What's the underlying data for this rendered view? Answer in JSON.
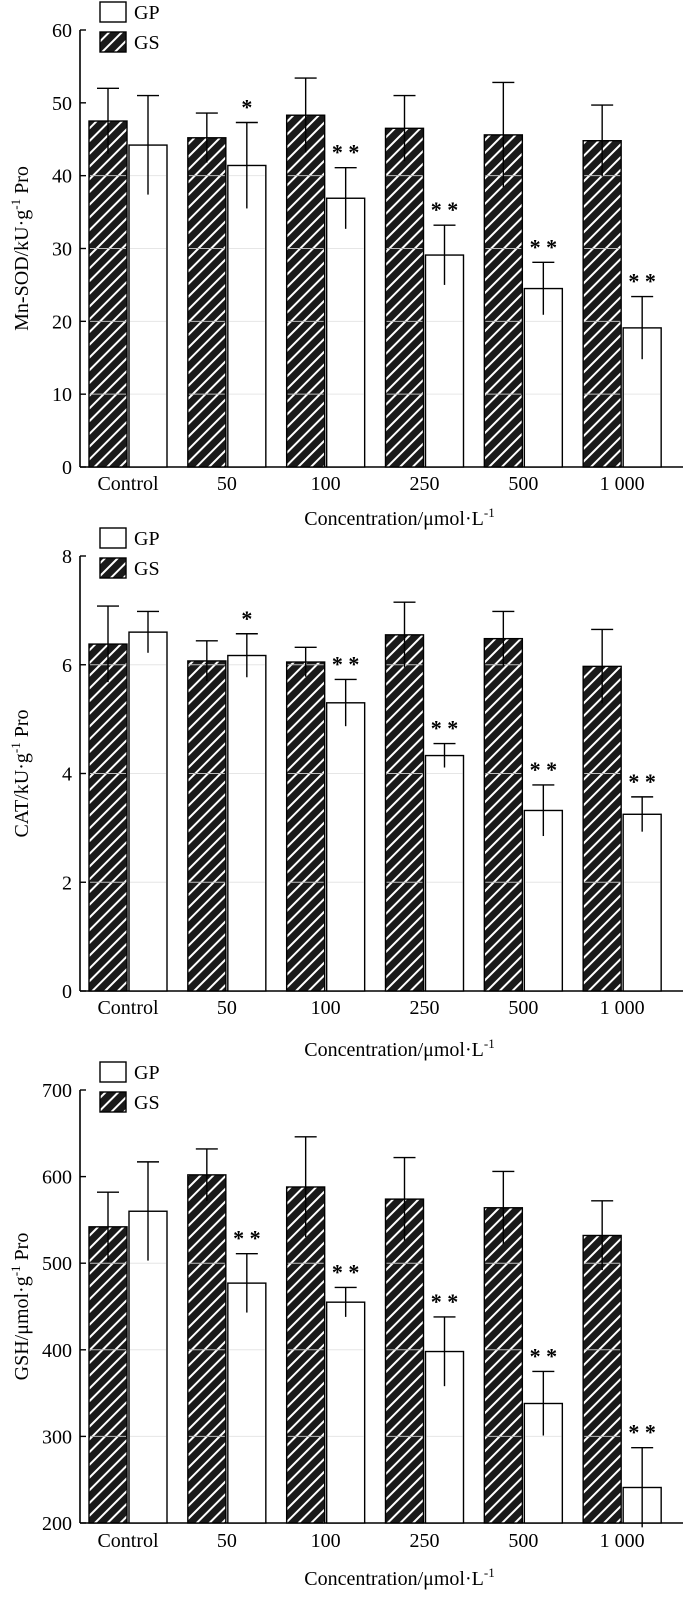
{
  "chart_data": [
    {
      "type": "bar",
      "title": "",
      "xlabel": "Concentration/μmol·L",
      "xlabel_sup": "-1",
      "ylabel": "Mn-SOD/kU·g",
      "ylabel_sup": "-1",
      "ylabel_suffix": " Pro",
      "categories": [
        "Control",
        "50",
        "100",
        "250",
        "500",
        "1 000"
      ],
      "ylim": [
        0,
        60
      ],
      "yticks": [
        "0",
        "10",
        "20",
        "30",
        "40",
        "50",
        "60"
      ],
      "legend": [
        "GP",
        "GS"
      ],
      "series": [
        {
          "name": "GS",
          "pattern": "hatched",
          "values": [
            47.5,
            45.2,
            48.3,
            46.5,
            45.6,
            44.8
          ],
          "errors": [
            4.5,
            3.4,
            5.1,
            4.5,
            7.2,
            4.9
          ],
          "marks": [
            "",
            "",
            "",
            "",
            "",
            ""
          ]
        },
        {
          "name": "GP",
          "pattern": "open",
          "values": [
            44.2,
            41.4,
            36.9,
            29.1,
            24.5,
            19.1
          ],
          "errors": [
            6.8,
            5.9,
            4.2,
            4.1,
            3.6,
            4.3
          ],
          "marks": [
            "",
            "*",
            "**",
            "**",
            "**",
            "**"
          ]
        }
      ]
    },
    {
      "type": "bar",
      "title": "",
      "xlabel": "Concentration/μmol·L",
      "xlabel_sup": "-1",
      "ylabel": "CAT/kU·g",
      "ylabel_sup": "-1",
      "ylabel_suffix": " Pro",
      "categories": [
        "Control",
        "50",
        "100",
        "250",
        "500",
        "1 000"
      ],
      "ylim": [
        0,
        8
      ],
      "yticks": [
        "0",
        "2",
        "4",
        "6",
        "8"
      ],
      "legend": [
        "GP",
        "GS"
      ],
      "series": [
        {
          "name": "GS",
          "pattern": "hatched",
          "values": [
            6.38,
            6.07,
            6.05,
            6.55,
            6.48,
            5.97
          ],
          "errors": [
            0.7,
            0.37,
            0.27,
            0.6,
            0.5,
            0.68
          ],
          "marks": [
            "",
            "",
            "",
            "",
            "",
            ""
          ]
        },
        {
          "name": "GP",
          "pattern": "open",
          "values": [
            6.6,
            6.17,
            5.3,
            4.33,
            3.32,
            3.25
          ],
          "errors": [
            0.38,
            0.4,
            0.43,
            0.22,
            0.47,
            0.32
          ],
          "marks": [
            "",
            "*",
            "**",
            "**",
            "**",
            "**"
          ]
        }
      ]
    },
    {
      "type": "bar",
      "title": "",
      "xlabel": "Concentration/μmol·L",
      "xlabel_sup": "-1",
      "ylabel": "GSH/μmol·g",
      "ylabel_sup": "-1",
      "ylabel_suffix": " Pro",
      "categories": [
        "Control",
        "50",
        "100",
        "250",
        "500",
        "1 000"
      ],
      "ylim": [
        200,
        700
      ],
      "yticks": [
        "200",
        "300",
        "400",
        "500",
        "600",
        "700"
      ],
      "legend": [
        "GP",
        "GS"
      ],
      "series": [
        {
          "name": "GS",
          "pattern": "hatched",
          "values": [
            542,
            602,
            588,
            574,
            564,
            532
          ],
          "errors": [
            40,
            30,
            58,
            48,
            42,
            40
          ],
          "marks": [
            "",
            "",
            "",
            "",
            "",
            ""
          ]
        },
        {
          "name": "GP",
          "pattern": "open",
          "values": [
            560,
            477,
            455,
            398,
            338,
            241
          ],
          "errors": [
            57,
            34,
            17,
            40,
            37,
            46
          ],
          "marks": [
            "",
            "**",
            "**",
            "**",
            "**",
            "**"
          ]
        }
      ]
    }
  ]
}
